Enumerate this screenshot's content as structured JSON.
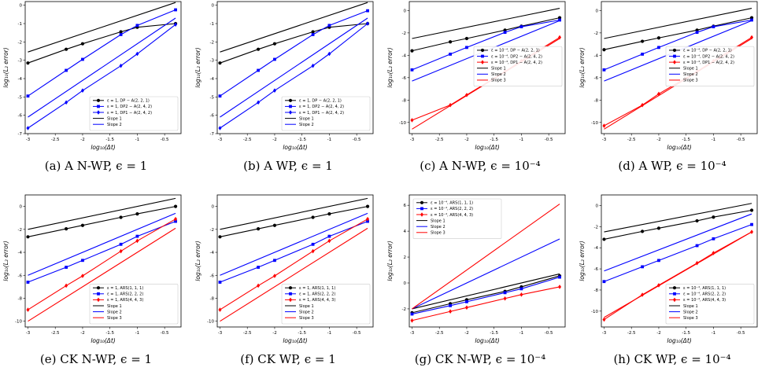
{
  "chart_data": [
    {
      "type": "line",
      "caption": "(a) A N-WP, ϵ = 1",
      "xlabel": "log₁₀(Δt)",
      "ylabel": "log₁₀(L₂ error)",
      "xlim": [
        -3.05,
        -0.2
      ],
      "ylim": [
        -7.0,
        0.2
      ],
      "xticks": [
        -3.0,
        -2.5,
        -2.0,
        -1.5,
        -1.0,
        -0.5
      ],
      "yticks": [
        0,
        -1,
        -2,
        -3,
        -4,
        -5,
        -6,
        -7
      ],
      "legend": "lower-right",
      "series": [
        {
          "name": "ε = 1, DP − A(2, 2, 1)",
          "color": "#000000",
          "marker": "circle",
          "x": [
            -3.0,
            -2.3,
            -2.0,
            -1.3,
            -1.0,
            -0.3
          ],
          "y": [
            -3.15,
            -2.4,
            -2.1,
            -1.45,
            -1.2,
            -1.0
          ]
        },
        {
          "name": "ε = 1, DP2 − A(2, 4, 2)",
          "color": "#0000ff",
          "marker": "square",
          "x": [
            -3.0,
            -2.3,
            -2.0,
            -1.3,
            -1.0,
            -0.3
          ],
          "y": [
            -4.95,
            -3.55,
            -2.95,
            -1.6,
            -1.1,
            -0.25
          ]
        },
        {
          "name": "ε = 1, DP1 − A(2, 4, 2)",
          "color": "#0000ff",
          "marker": "diamond",
          "x": [
            -3.0,
            -2.3,
            -2.0,
            -1.3,
            -1.0,
            -0.3
          ],
          "y": [
            -6.7,
            -5.3,
            -4.65,
            -3.3,
            -2.65,
            -1.05
          ]
        },
        {
          "name": "Slope 1",
          "color": "#000000",
          "marker": "none",
          "x": [
            -3.0,
            -0.3
          ],
          "y": [
            -2.55,
            0.15
          ]
        },
        {
          "name": "Slope 2",
          "color": "#0000ff",
          "marker": "none",
          "x": [
            -3.0,
            -0.3
          ],
          "y": [
            -6.1,
            -0.7
          ]
        }
      ]
    },
    {
      "type": "line",
      "caption": "(b) A WP, ϵ = 1",
      "xlabel": "log₁₀(Δt)",
      "ylabel": "log₁₀(L₂ error)",
      "xlim": [
        -3.05,
        -0.2
      ],
      "ylim": [
        -7.0,
        0.2
      ],
      "xticks": [
        -3.0,
        -2.5,
        -2.0,
        -1.5,
        -1.0,
        -0.5
      ],
      "yticks": [
        0,
        -1,
        -2,
        -3,
        -4,
        -5,
        -6,
        -7
      ],
      "legend": "lower-right",
      "series": [
        {
          "name": "ε = 1, DP − A(2, 2, 1)",
          "color": "#000000",
          "marker": "circle",
          "x": [
            -3.0,
            -2.3,
            -2.0,
            -1.3,
            -1.0,
            -0.3
          ],
          "y": [
            -3.15,
            -2.4,
            -2.1,
            -1.45,
            -1.2,
            -1.0
          ]
        },
        {
          "name": "ε = 1, DP2 − A(2, 4, 2)",
          "color": "#0000ff",
          "marker": "square",
          "x": [
            -3.0,
            -2.3,
            -2.0,
            -1.3,
            -1.0,
            -0.3
          ],
          "y": [
            -4.95,
            -3.55,
            -2.95,
            -1.6,
            -1.1,
            -0.3
          ]
        },
        {
          "name": "ε = 1, DP1 − A(2, 4, 2)",
          "color": "#0000ff",
          "marker": "diamond",
          "x": [
            -3.0,
            -2.3,
            -2.0,
            -1.3,
            -1.0,
            -0.3
          ],
          "y": [
            -6.7,
            -5.3,
            -4.65,
            -3.3,
            -2.65,
            -1.0
          ]
        },
        {
          "name": "Slope 1",
          "color": "#000000",
          "marker": "none",
          "x": [
            -3.0,
            -0.3
          ],
          "y": [
            -2.55,
            0.15
          ]
        },
        {
          "name": "Slope 2",
          "color": "#0000ff",
          "marker": "none",
          "x": [
            -3.0,
            -0.3
          ],
          "y": [
            -6.1,
            -0.7
          ]
        }
      ]
    },
    {
      "type": "line",
      "caption": "(c) A N-WP, ϵ = 10⁻⁴",
      "xlabel": "log₁₀(Δt)",
      "ylabel": "log₁₀(L₂ error)",
      "xlim": [
        -3.05,
        -0.2
      ],
      "ylim": [
        -11.0,
        0.8
      ],
      "xticks": [
        -3.0,
        -2.5,
        -2.0,
        -1.5,
        -1.0,
        -0.5
      ],
      "yticks": [
        0,
        -2,
        -4,
        -6,
        -8,
        -10
      ],
      "legend": "center-right",
      "series": [
        {
          "name": "ε = 10⁻⁴, DP − A(2, 2, 1)",
          "color": "#000000",
          "marker": "circle",
          "x": [
            -3.0,
            -2.3,
            -2.0,
            -1.3,
            -1.0,
            -0.3
          ],
          "y": [
            -3.6,
            -2.8,
            -2.5,
            -1.75,
            -1.4,
            -0.65
          ]
        },
        {
          "name": "ε = 10⁻⁴, DP2 − A(2, 4, 2)",
          "color": "#0000ff",
          "marker": "square",
          "x": [
            -3.0,
            -2.3,
            -2.0,
            -1.3,
            -1.0,
            -0.3
          ],
          "y": [
            -5.3,
            -3.9,
            -3.3,
            -1.95,
            -1.45,
            -0.85
          ]
        },
        {
          "name": "ε = 10⁻⁴, DP1 − A(2, 4, 2)",
          "color": "#ff0000",
          "marker": "diamond",
          "x": [
            -3.0,
            -2.3,
            -2.0,
            -1.3,
            -1.0,
            -0.3
          ],
          "y": [
            -9.8,
            -8.45,
            -7.55,
            -5.45,
            -4.5,
            -2.4
          ]
        },
        {
          "name": "Slope 1",
          "color": "#000000",
          "marker": "none",
          "x": [
            -3.0,
            -0.3
          ],
          "y": [
            -2.5,
            0.2
          ]
        },
        {
          "name": "Slope 2",
          "color": "#0000ff",
          "marker": "none",
          "x": [
            -3.0,
            -0.3
          ],
          "y": [
            -6.3,
            -0.9
          ]
        },
        {
          "name": "Slope 3",
          "color": "#ff0000",
          "marker": "none",
          "x": [
            -3.0,
            -0.3
          ],
          "y": [
            -10.6,
            -2.5
          ]
        }
      ]
    },
    {
      "type": "line",
      "caption": "(d) A WP, ϵ = 10⁻⁴",
      "xlabel": "log₁₀(Δt)",
      "ylabel": "log₁₀(L₂ error)",
      "xlim": [
        -3.05,
        -0.2
      ],
      "ylim": [
        -11.0,
        0.8
      ],
      "xticks": [
        -3.0,
        -2.5,
        -2.0,
        -1.5,
        -1.0,
        -0.5
      ],
      "yticks": [
        0,
        -2,
        -4,
        -6,
        -8,
        -10
      ],
      "legend": "center-right",
      "series": [
        {
          "name": "ε = 10⁻⁴, DP − A(2, 2, 1)",
          "color": "#000000",
          "marker": "circle",
          "x": [
            -3.0,
            -2.3,
            -2.0,
            -1.3,
            -1.0,
            -0.3
          ],
          "y": [
            -3.5,
            -2.75,
            -2.45,
            -1.75,
            -1.4,
            -0.65
          ]
        },
        {
          "name": "ε = 10⁻⁴, DP2 − A(2, 4, 2)",
          "color": "#0000ff",
          "marker": "square",
          "x": [
            -3.0,
            -2.3,
            -2.0,
            -1.3,
            -1.0,
            -0.3
          ],
          "y": [
            -5.3,
            -3.9,
            -3.3,
            -1.95,
            -1.45,
            -0.85
          ]
        },
        {
          "name": "ε = 10⁻⁴, DP1 − A(2, 4, 2)",
          "color": "#ff0000",
          "marker": "diamond",
          "x": [
            -3.0,
            -2.3,
            -2.0,
            -1.3,
            -1.0,
            -0.3
          ],
          "y": [
            -10.3,
            -8.45,
            -7.45,
            -5.45,
            -4.5,
            -2.4
          ]
        },
        {
          "name": "Slope 1",
          "color": "#000000",
          "marker": "none",
          "x": [
            -3.0,
            -0.3
          ],
          "y": [
            -2.5,
            0.2
          ]
        },
        {
          "name": "Slope 2",
          "color": "#0000ff",
          "marker": "none",
          "x": [
            -3.0,
            -0.3
          ],
          "y": [
            -6.3,
            -0.9
          ]
        },
        {
          "name": "Slope 3",
          "color": "#ff0000",
          "marker": "none",
          "x": [
            -3.0,
            -0.3
          ],
          "y": [
            -10.6,
            -2.5
          ]
        }
      ]
    },
    {
      "type": "line",
      "caption": "(e) CK N-WP, ϵ = 1",
      "xlabel": "log₁₀(Δt)",
      "ylabel": "log₁₀(L₂ error)",
      "xlim": [
        -3.05,
        -0.2
      ],
      "ylim": [
        -10.5,
        1.0
      ],
      "xticks": [
        -3.0,
        -2.5,
        -2.0,
        -1.5,
        -1.0,
        -0.5
      ],
      "yticks": [
        0,
        -2,
        -4,
        -6,
        -8,
        -10
      ],
      "legend": "lower-right",
      "series": [
        {
          "name": "ε = 1, ARS(1, 1, 1)",
          "color": "#000000",
          "marker": "circle",
          "x": [
            -3.0,
            -2.3,
            -2.0,
            -1.3,
            -1.0,
            -0.3
          ],
          "y": [
            -2.65,
            -1.95,
            -1.65,
            -0.95,
            -0.65,
            0.0
          ]
        },
        {
          "name": "ε = 1, ARS(2, 2, 2)",
          "color": "#0000ff",
          "marker": "square",
          "x": [
            -3.0,
            -2.3,
            -2.0,
            -1.3,
            -1.0,
            -0.3
          ],
          "y": [
            -6.6,
            -5.3,
            -4.7,
            -3.3,
            -2.6,
            -1.3
          ]
        },
        {
          "name": "ε = 1, ARS(4, 4, 3)",
          "color": "#ff0000",
          "marker": "diamond",
          "x": [
            -3.0,
            -2.3,
            -2.0,
            -1.3,
            -1.0,
            -0.3
          ],
          "y": [
            -9.0,
            -6.9,
            -6.05,
            -3.9,
            -3.0,
            -1.1
          ]
        },
        {
          "name": "Slope 1",
          "color": "#000000",
          "marker": "none",
          "x": [
            -3.0,
            -0.3
          ],
          "y": [
            -2.0,
            0.7
          ]
        },
        {
          "name": "Slope 2",
          "color": "#0000ff",
          "marker": "none",
          "x": [
            -3.0,
            -0.3
          ],
          "y": [
            -6.0,
            -0.6
          ]
        },
        {
          "name": "Slope 3",
          "color": "#ff0000",
          "marker": "none",
          "x": [
            -3.0,
            -0.3
          ],
          "y": [
            -10.0,
            -1.9
          ]
        }
      ]
    },
    {
      "type": "line",
      "caption": "(f) CK WP, ϵ = 1",
      "xlabel": "log₁₀(Δt)",
      "ylabel": "log₁₀(L₂ error)",
      "xlim": [
        -3.05,
        -0.2
      ],
      "ylim": [
        -10.5,
        1.0
      ],
      "xticks": [
        -3.0,
        -2.5,
        -2.0,
        -1.5,
        -1.0,
        -0.5
      ],
      "yticks": [
        0,
        -2,
        -4,
        -6,
        -8,
        -10
      ],
      "legend": "lower-right",
      "series": [
        {
          "name": "ε = 1, ARS(1, 1, 1)",
          "color": "#000000",
          "marker": "circle",
          "x": [
            -3.0,
            -2.3,
            -2.0,
            -1.3,
            -1.0,
            -0.3
          ],
          "y": [
            -2.65,
            -1.95,
            -1.65,
            -0.95,
            -0.65,
            0.0
          ]
        },
        {
          "name": "ε = 1, ARS(2, 2, 2)",
          "color": "#0000ff",
          "marker": "square",
          "x": [
            -3.0,
            -2.3,
            -2.0,
            -1.3,
            -1.0,
            -0.3
          ],
          "y": [
            -6.6,
            -5.3,
            -4.7,
            -3.3,
            -2.6,
            -1.3
          ]
        },
        {
          "name": "ε = 1, ARS(4, 4, 3)",
          "color": "#ff0000",
          "marker": "diamond",
          "x": [
            -3.0,
            -2.3,
            -2.0,
            -1.3,
            -1.0,
            -0.3
          ],
          "y": [
            -9.0,
            -6.9,
            -6.05,
            -3.9,
            -3.0,
            -1.1
          ]
        },
        {
          "name": "Slope 1",
          "color": "#000000",
          "marker": "none",
          "x": [
            -3.0,
            -0.3
          ],
          "y": [
            -2.0,
            0.7
          ]
        },
        {
          "name": "Slope 2",
          "color": "#0000ff",
          "marker": "none",
          "x": [
            -3.0,
            -0.3
          ],
          "y": [
            -6.0,
            -0.6
          ]
        },
        {
          "name": "Slope 3",
          "color": "#ff0000",
          "marker": "none",
          "x": [
            -3.0,
            -0.3
          ],
          "y": [
            -10.0,
            -1.9
          ]
        }
      ]
    },
    {
      "type": "line",
      "caption": "(g) CK N-WP, ϵ = 10⁻⁴",
      "xlabel": "log₁₀(Δt)",
      "ylabel": "log₁₀(L₂ error)",
      "xlim": [
        -3.05,
        -0.2
      ],
      "ylim": [
        -3.4,
        6.8
      ],
      "xticks": [
        -3.0,
        -2.5,
        -2.0,
        -1.5,
        -1.0,
        -0.5
      ],
      "yticks": [
        6,
        4,
        2,
        0,
        -2
      ],
      "legend": "upper-left",
      "series": [
        {
          "name": "ε = 10⁻⁴, ARS(1, 1, 1)",
          "color": "#000000",
          "marker": "circle",
          "x": [
            -3.0,
            -2.3,
            -2.0,
            -1.3,
            -1.0,
            -0.3
          ],
          "y": [
            -2.3,
            -1.6,
            -1.3,
            -0.65,
            -0.3,
            0.55
          ]
        },
        {
          "name": "ε = 10⁻⁴, ARS(2, 2, 2)",
          "color": "#0000ff",
          "marker": "square",
          "x": [
            -3.0,
            -2.3,
            -2.0,
            -1.3,
            -1.0,
            -0.3
          ],
          "y": [
            -2.4,
            -1.75,
            -1.45,
            -0.75,
            -0.45,
            0.45
          ]
        },
        {
          "name": "ε = 10⁻⁴, ARS(4, 4, 3)",
          "color": "#ff0000",
          "marker": "diamond",
          "x": [
            -3.0,
            -2.3,
            -2.0,
            -1.3,
            -1.0,
            -0.3
          ],
          "y": [
            -2.9,
            -2.2,
            -1.9,
            -1.2,
            -0.9,
            -0.3
          ]
        },
        {
          "name": "Slope 1",
          "color": "#000000",
          "marker": "none",
          "x": [
            -3.0,
            -0.3
          ],
          "y": [
            -2.0,
            0.7
          ]
        },
        {
          "name": "Slope 2",
          "color": "#0000ff",
          "marker": "none",
          "x": [
            -3.0,
            -0.3
          ],
          "y": [
            -2.0,
            3.4
          ]
        },
        {
          "name": "Slope 3",
          "color": "#ff0000",
          "marker": "none",
          "x": [
            -3.0,
            -0.3
          ],
          "y": [
            -2.0,
            6.1
          ]
        }
      ]
    },
    {
      "type": "line",
      "caption": "(h) CK WP, ϵ = 10⁻⁴",
      "xlabel": "log₁₀(Δt)",
      "ylabel": "log₁₀(L₂ error)",
      "xlim": [
        -3.05,
        -0.2
      ],
      "ylim": [
        -11.5,
        1.0
      ],
      "xticks": [
        -3.0,
        -2.5,
        -2.0,
        -1.5,
        -1.0,
        -0.5
      ],
      "yticks": [
        0,
        -2,
        -4,
        -6,
        -8,
        -10
      ],
      "legend": "lower-right",
      "series": [
        {
          "name": "ε = 10⁻⁴, ARS(1, 1, 1)",
          "color": "#000000",
          "marker": "circle",
          "x": [
            -3.0,
            -2.3,
            -2.0,
            -1.3,
            -1.0,
            -0.3
          ],
          "y": [
            -3.2,
            -2.45,
            -2.15,
            -1.45,
            -1.1,
            -0.45
          ]
        },
        {
          "name": "ε = 10⁻⁴, ARS(2, 2, 2)",
          "color": "#0000ff",
          "marker": "square",
          "x": [
            -3.0,
            -2.3,
            -2.0,
            -1.3,
            -1.0,
            -0.3
          ],
          "y": [
            -7.2,
            -5.8,
            -5.2,
            -3.8,
            -3.15,
            -1.8
          ]
        },
        {
          "name": "ε = 10⁻⁴, ARS(4, 4, 3)",
          "color": "#ff0000",
          "marker": "diamond",
          "x": [
            -3.0,
            -2.3,
            -2.0,
            -1.3,
            -1.0,
            -0.3
          ],
          "y": [
            -10.8,
            -8.45,
            -7.55,
            -5.45,
            -4.5,
            -2.5
          ]
        },
        {
          "name": "Slope 1",
          "color": "#000000",
          "marker": "none",
          "x": [
            -3.0,
            -0.3
          ],
          "y": [
            -2.5,
            0.2
          ]
        },
        {
          "name": "Slope 2",
          "color": "#0000ff",
          "marker": "none",
          "x": [
            -3.0,
            -0.3
          ],
          "y": [
            -6.2,
            -0.8
          ]
        },
        {
          "name": "Slope 3",
          "color": "#ff0000",
          "marker": "none",
          "x": [
            -3.0,
            -0.3
          ],
          "y": [
            -10.6,
            -2.5
          ]
        }
      ]
    }
  ]
}
